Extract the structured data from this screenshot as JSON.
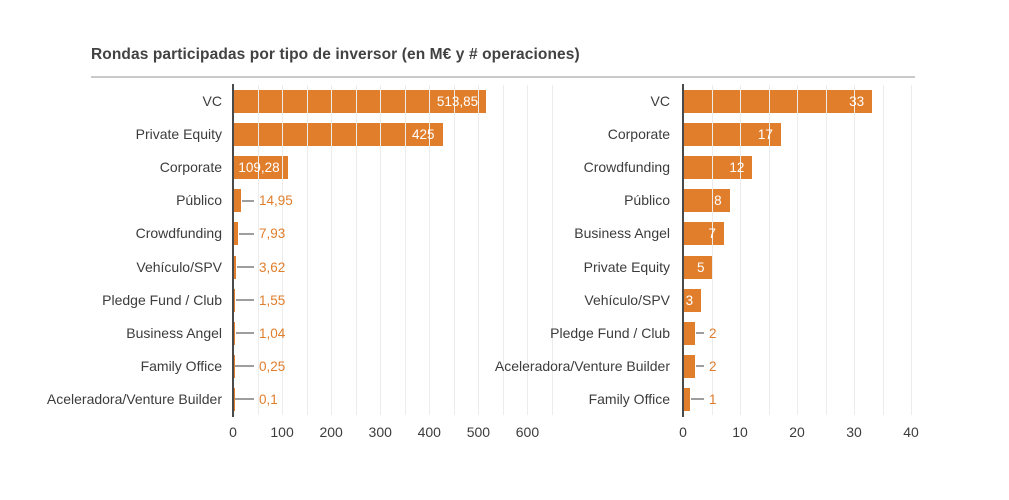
{
  "title": "Rondas participadas por tipo de inversor (en M€ y # operaciones)",
  "colors": {
    "background": "#FFFFFF",
    "bar": "#E07E2C",
    "grid": "#ECECEC",
    "axis": "#4A4A4A",
    "text": "#3C3C3C",
    "titlecolor": "#424242",
    "rule": "#C9C9C9",
    "leader": "#9E9E9E",
    "insidelabel": "#FFFFFF",
    "outsidelabel": "#E07E2C"
  },
  "chart_data": [
    {
      "type": "bar",
      "orientation": "horizontal",
      "name": "rondas-importe",
      "unit": "M€",
      "categories": [
        "VC",
        "Private Equity",
        "Corporate",
        "Público",
        "Crowdfunding",
        "Vehículo/SPV",
        "Pledge Fund / Club",
        "Business Angel",
        "Family Office",
        "Aceleradora/Venture Builder"
      ],
      "values": [
        513.85,
        425,
        109.28,
        14.95,
        7.93,
        3.62,
        1.55,
        1.04,
        0.25,
        0.1
      ],
      "value_labels": [
        "513,85",
        "425",
        "109,28",
        "14,95",
        "7,93",
        "3,62",
        "1,55",
        "1,04",
        "0,25",
        "0,1"
      ],
      "label_inside_count": 3,
      "xticks": [
        0,
        100,
        200,
        300,
        400,
        500,
        600
      ],
      "xtick_labels": [
        "0",
        "100",
        "200",
        "300",
        "400",
        "500",
        "600"
      ],
      "xlim": [
        0,
        650
      ],
      "grid_step": 50,
      "grid": true,
      "legend": false
    },
    {
      "type": "bar",
      "orientation": "horizontal",
      "name": "rondas-operaciones",
      "unit": "# operaciones",
      "categories": [
        "VC",
        "Corporate",
        "Crowdfunding",
        "Público",
        "Business Angel",
        "Private Equity",
        "Vehículo/SPV",
        "Pledge Fund / Club",
        "Aceleradora/Venture Builder",
        "Family Office"
      ],
      "values": [
        33,
        17,
        12,
        8,
        7,
        5,
        3,
        2,
        2,
        1
      ],
      "value_labels": [
        "33",
        "17",
        "12",
        "8",
        "7",
        "5",
        "3",
        "2",
        "2",
        "1"
      ],
      "label_inside_count": 7,
      "xticks": [
        0,
        10,
        20,
        30,
        40
      ],
      "xtick_labels": [
        "0",
        "10",
        "20",
        "30",
        "40"
      ],
      "xlim": [
        0,
        40.7
      ],
      "grid_step": 5,
      "grid": true,
      "legend": false
    }
  ]
}
